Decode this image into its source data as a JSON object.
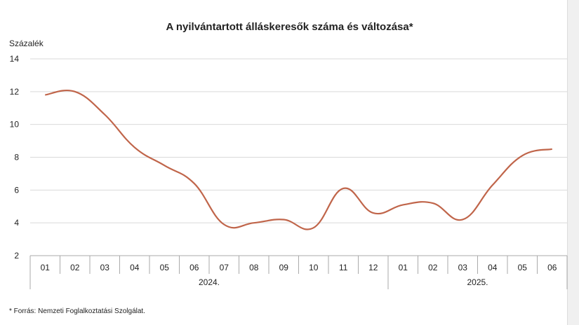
{
  "chart_data": {
    "type": "line",
    "title": "A nyilvántartott álláskeresők száma és változása*",
    "ylabel": "Százalék",
    "ylim": [
      2,
      14
    ],
    "yticks": [
      2,
      4,
      6,
      8,
      10,
      12,
      14
    ],
    "grid": true,
    "categories": [
      "01",
      "02",
      "03",
      "04",
      "05",
      "06",
      "07",
      "08",
      "09",
      "10",
      "11",
      "12",
      "01",
      "02",
      "03",
      "04",
      "05",
      "06"
    ],
    "groups": [
      {
        "label": "2024.",
        "count": 12
      },
      {
        "label": "2025.",
        "count": 6
      }
    ],
    "series": [
      {
        "values": [
          11.8,
          12.0,
          10.6,
          8.6,
          7.5,
          6.4,
          3.9,
          4.0,
          4.2,
          3.7,
          6.1,
          4.6,
          5.1,
          5.2,
          4.2,
          6.3,
          8.1,
          8.5
        ],
        "color": "#c0654a"
      }
    ],
    "footnote": "* Forrás: Nemzeti Foglalkoztatási Szolgálat."
  }
}
